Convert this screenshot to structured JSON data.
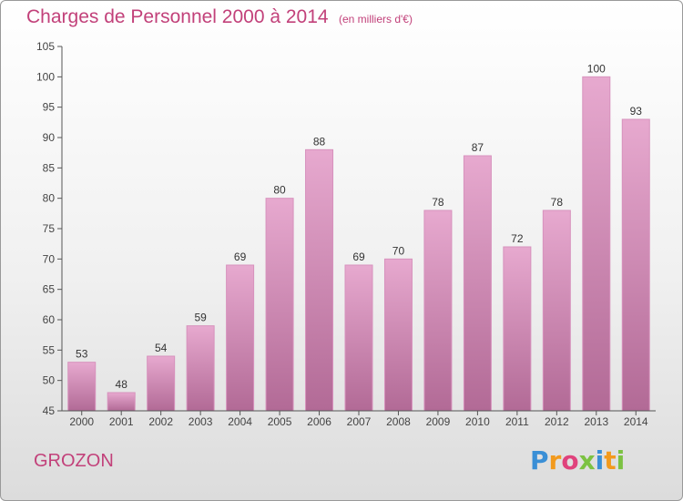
{
  "title": "Charges de Personnel 2000 à 2014",
  "subtitle": "(en milliers d'€)",
  "commune": "GROZON",
  "logo": {
    "letters": [
      "P",
      "r",
      "o",
      "x",
      "i",
      "t",
      "i"
    ],
    "colors": [
      "#3a8fd6",
      "#f29a1d",
      "#e0427c",
      "#7cc242",
      "#3a8fd6",
      "#f29a1d",
      "#7cc242"
    ]
  },
  "colors": {
    "accent": "#c2417a",
    "bar_top": "#e7a9cf",
    "bar_bottom": "#b26a96"
  },
  "chart_data": {
    "type": "bar",
    "categories": [
      "2000",
      "2001",
      "2002",
      "2003",
      "2004",
      "2005",
      "2006",
      "2007",
      "2008",
      "2009",
      "2010",
      "2011",
      "2012",
      "2013",
      "2014"
    ],
    "values": [
      53,
      48,
      54,
      59,
      69,
      80,
      88,
      69,
      70,
      78,
      87,
      72,
      78,
      100,
      93
    ],
    "title": "Charges de Personnel 2000 à 2014",
    "ylim": [
      45,
      105
    ],
    "yticks": [
      45,
      50,
      55,
      60,
      65,
      70,
      75,
      80,
      85,
      90,
      95,
      100,
      105
    ],
    "grid": false,
    "data_labels": true
  }
}
